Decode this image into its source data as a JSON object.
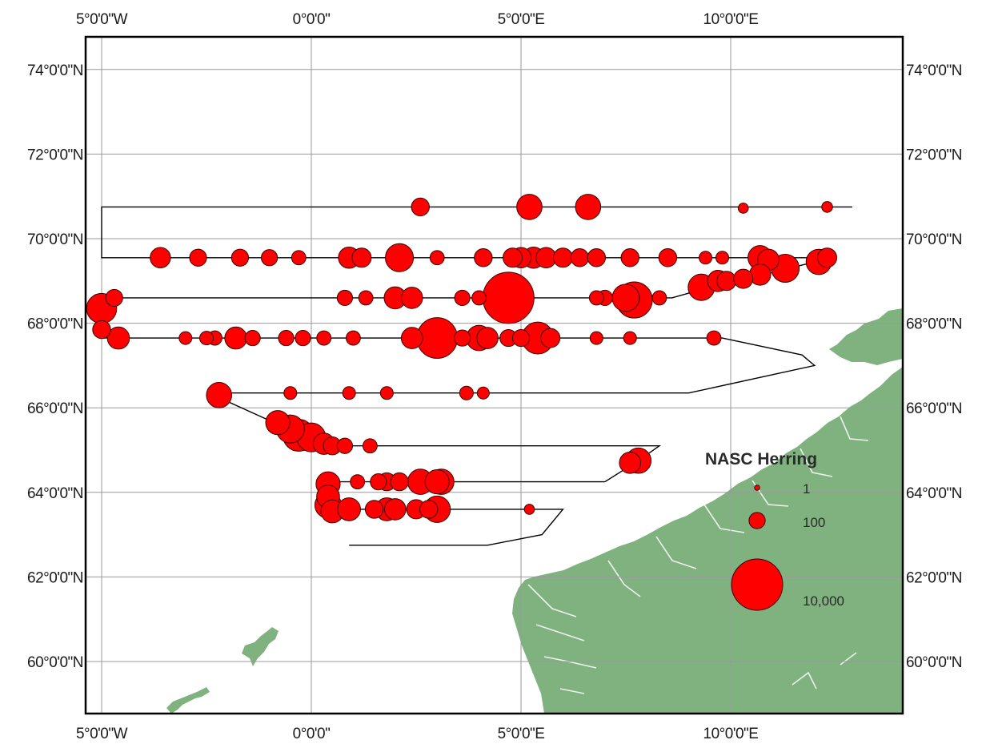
{
  "map": {
    "lon_range": [
      -5,
      14
    ],
    "lat_range": [
      58.8,
      75
    ],
    "land_color": "#7fb27e",
    "track_color": "#000000",
    "circle_fill": "#ff0000",
    "circle_stroke": "#3a0000",
    "grid_color": "#9a9a9a",
    "frame_color": "#000000"
  },
  "axes": {
    "top_labels": [
      {
        "lon": -5,
        "text": "5°0'0\"W"
      },
      {
        "lon": 0,
        "text": "0°0'0\""
      },
      {
        "lon": 5,
        "text": "5°0'0\"E"
      },
      {
        "lon": 10,
        "text": "10°0'0\"E"
      }
    ],
    "bottom_labels": [
      {
        "lon": -5,
        "text": "5°0'0\"W"
      },
      {
        "lon": 0,
        "text": "0°0'0\""
      },
      {
        "lon": 5,
        "text": "5°0'0\"E"
      },
      {
        "lon": 10,
        "text": "10°0'0\"E"
      }
    ],
    "lat_labels": [
      {
        "lat": 74,
        "text": "74°0'0\"N"
      },
      {
        "lat": 72,
        "text": "72°0'0\"N"
      },
      {
        "lat": 70,
        "text": "70°0'0\"N"
      },
      {
        "lat": 68,
        "text": "68°0'0\"N"
      },
      {
        "lat": 66,
        "text": "66°0'0\"N"
      },
      {
        "lat": 64,
        "text": "64°0'0\"N"
      },
      {
        "lat": 62,
        "text": "62°0'0\"N"
      },
      {
        "lat": 60,
        "text": "60°0'0\"N"
      }
    ]
  },
  "legend": {
    "title": "NASC Herring",
    "entries": [
      {
        "value": 1,
        "label": "1"
      },
      {
        "value": 100,
        "label": "100"
      },
      {
        "value": 10000,
        "label": "10,000"
      }
    ]
  },
  "cruise_track": [
    [
      12.9,
      70.75
    ],
    [
      -5.0,
      70.75
    ],
    [
      -5.0,
      69.55
    ],
    [
      12.4,
      69.55
    ],
    [
      11.8,
      69.4
    ],
    [
      10.6,
      69.1
    ],
    [
      9.5,
      68.85
    ],
    [
      8.6,
      68.6
    ],
    [
      -5.0,
      68.6
    ],
    [
      -5.0,
      67.65
    ],
    [
      9.8,
      67.65
    ],
    [
      11.7,
      67.25
    ],
    [
      12.0,
      67.0
    ],
    [
      9.0,
      66.35
    ],
    [
      -2.2,
      66.35
    ],
    [
      -2.0,
      66.15
    ],
    [
      -1.0,
      65.7
    ],
    [
      0.2,
      65.1
    ],
    [
      8.3,
      65.1
    ],
    [
      7.8,
      64.75
    ],
    [
      7.0,
      64.25
    ],
    [
      0.4,
      64.25
    ],
    [
      0.4,
      63.6
    ],
    [
      6.0,
      63.6
    ],
    [
      5.5,
      63.0
    ],
    [
      4.2,
      62.75
    ],
    [
      0.9,
      62.75
    ]
  ],
  "nasc_observations": [
    {
      "lon": 2.6,
      "lat": 70.75,
      "nasc": 150
    },
    {
      "lon": 5.2,
      "lat": 70.75,
      "nasc": 600
    },
    {
      "lon": 6.6,
      "lat": 70.75,
      "nasc": 600
    },
    {
      "lon": 10.3,
      "lat": 70.72,
      "nasc": 15
    },
    {
      "lon": 12.3,
      "lat": 70.75,
      "nasc": 20
    },
    {
      "lon": -3.6,
      "lat": 69.55,
      "nasc": 250
    },
    {
      "lon": -2.7,
      "lat": 69.55,
      "nasc": 120
    },
    {
      "lon": -1.7,
      "lat": 69.55,
      "nasc": 120
    },
    {
      "lon": -1.0,
      "lat": 69.55,
      "nasc": 100
    },
    {
      "lon": -0.3,
      "lat": 69.55,
      "nasc": 60
    },
    {
      "lon": 0.9,
      "lat": 69.55,
      "nasc": 300
    },
    {
      "lon": 1.2,
      "lat": 69.55,
      "nasc": 200
    },
    {
      "lon": 2.1,
      "lat": 69.55,
      "nasc": 900
    },
    {
      "lon": 3.0,
      "lat": 69.55,
      "nasc": 60
    },
    {
      "lon": 4.1,
      "lat": 69.55,
      "nasc": 150
    },
    {
      "lon": 4.8,
      "lat": 69.55,
      "nasc": 200
    },
    {
      "lon": 5.0,
      "lat": 69.55,
      "nasc": 250
    },
    {
      "lon": 5.3,
      "lat": 69.55,
      "nasc": 300
    },
    {
      "lon": 5.6,
      "lat": 69.55,
      "nasc": 250
    },
    {
      "lon": 6.0,
      "lat": 69.55,
      "nasc": 200
    },
    {
      "lon": 6.4,
      "lat": 69.55,
      "nasc": 150
    },
    {
      "lon": 6.8,
      "lat": 69.55,
      "nasc": 150
    },
    {
      "lon": 7.6,
      "lat": 69.55,
      "nasc": 150
    },
    {
      "lon": 8.5,
      "lat": 69.55,
      "nasc": 150
    },
    {
      "lon": 9.4,
      "lat": 69.55,
      "nasc": 40
    },
    {
      "lon": 9.8,
      "lat": 69.55,
      "nasc": 40
    },
    {
      "lon": 10.7,
      "lat": 69.55,
      "nasc": 500
    },
    {
      "lon": 10.9,
      "lat": 69.5,
      "nasc": 300
    },
    {
      "lon": 11.3,
      "lat": 69.3,
      "nasc": 900
    },
    {
      "lon": 12.1,
      "lat": 69.45,
      "nasc": 600
    },
    {
      "lon": 12.3,
      "lat": 69.55,
      "nasc": 200
    },
    {
      "lon": -5.0,
      "lat": 68.35,
      "nasc": 1200
    },
    {
      "lon": -4.7,
      "lat": 68.6,
      "nasc": 120
    },
    {
      "lon": 0.8,
      "lat": 68.6,
      "nasc": 80
    },
    {
      "lon": 1.3,
      "lat": 68.6,
      "nasc": 60
    },
    {
      "lon": 2.0,
      "lat": 68.6,
      "nasc": 350
    },
    {
      "lon": 2.4,
      "lat": 68.6,
      "nasc": 300
    },
    {
      "lon": 3.6,
      "lat": 68.6,
      "nasc": 80
    },
    {
      "lon": 4.0,
      "lat": 68.6,
      "nasc": 60
    },
    {
      "lon": 4.7,
      "lat": 68.6,
      "nasc": 10000
    },
    {
      "lon": 6.8,
      "lat": 68.6,
      "nasc": 60
    },
    {
      "lon": 7.0,
      "lat": 68.6,
      "nasc": 80
    },
    {
      "lon": 7.5,
      "lat": 68.6,
      "nasc": 800
    },
    {
      "lon": 7.7,
      "lat": 68.55,
      "nasc": 2500
    },
    {
      "lon": 8.3,
      "lat": 68.6,
      "nasc": 60
    },
    {
      "lon": 9.3,
      "lat": 68.85,
      "nasc": 700
    },
    {
      "lon": 9.7,
      "lat": 69.0,
      "nasc": 300
    },
    {
      "lon": 9.9,
      "lat": 69.0,
      "nasc": 200
    },
    {
      "lon": 10.3,
      "lat": 69.05,
      "nasc": 200
    },
    {
      "lon": 10.7,
      "lat": 69.15,
      "nasc": 300
    },
    {
      "lon": -5.0,
      "lat": 67.85,
      "nasc": 150
    },
    {
      "lon": -4.6,
      "lat": 67.65,
      "nasc": 350
    },
    {
      "lon": -3.0,
      "lat": 67.65,
      "nasc": 40
    },
    {
      "lon": -2.5,
      "lat": 67.65,
      "nasc": 50
    },
    {
      "lon": -2.3,
      "lat": 67.65,
      "nasc": 60
    },
    {
      "lon": -1.8,
      "lat": 67.65,
      "nasc": 350
    },
    {
      "lon": -1.4,
      "lat": 67.65,
      "nasc": 80
    },
    {
      "lon": -0.6,
      "lat": 67.65,
      "nasc": 80
    },
    {
      "lon": -0.2,
      "lat": 67.65,
      "nasc": 80
    },
    {
      "lon": 0.3,
      "lat": 67.65,
      "nasc": 60
    },
    {
      "lon": 1.0,
      "lat": 67.65,
      "nasc": 60
    },
    {
      "lon": 2.4,
      "lat": 67.65,
      "nasc": 300
    },
    {
      "lon": 3.0,
      "lat": 67.65,
      "nasc": 4000
    },
    {
      "lon": 3.6,
      "lat": 67.65,
      "nasc": 100
    },
    {
      "lon": 4.0,
      "lat": 67.65,
      "nasc": 600
    },
    {
      "lon": 4.2,
      "lat": 67.65,
      "nasc": 300
    },
    {
      "lon": 4.7,
      "lat": 67.65,
      "nasc": 120
    },
    {
      "lon": 5.0,
      "lat": 67.65,
      "nasc": 120
    },
    {
      "lon": 5.4,
      "lat": 67.65,
      "nasc": 1500
    },
    {
      "lon": 5.7,
      "lat": 67.65,
      "nasc": 200
    },
    {
      "lon": 6.8,
      "lat": 67.65,
      "nasc": 40
    },
    {
      "lon": 7.6,
      "lat": 67.65,
      "nasc": 40
    },
    {
      "lon": 9.6,
      "lat": 67.65,
      "nasc": 60
    },
    {
      "lon": -2.2,
      "lat": 66.3,
      "nasc": 600
    },
    {
      "lon": -0.5,
      "lat": 66.35,
      "nasc": 40
    },
    {
      "lon": 0.9,
      "lat": 66.35,
      "nasc": 40
    },
    {
      "lon": 1.8,
      "lat": 66.35,
      "nasc": 40
    },
    {
      "lon": 3.7,
      "lat": 66.35,
      "nasc": 50
    },
    {
      "lon": 4.1,
      "lat": 66.35,
      "nasc": 30
    },
    {
      "lon": -0.8,
      "lat": 65.65,
      "nasc": 500
    },
    {
      "lon": -0.5,
      "lat": 65.5,
      "nasc": 900
    },
    {
      "lon": -0.3,
      "lat": 65.35,
      "nasc": 1500
    },
    {
      "lon": 0.0,
      "lat": 65.3,
      "nasc": 1000
    },
    {
      "lon": 0.3,
      "lat": 65.15,
      "nasc": 300
    },
    {
      "lon": 0.5,
      "lat": 65.1,
      "nasc": 150
    },
    {
      "lon": 0.8,
      "lat": 65.1,
      "nasc": 80
    },
    {
      "lon": 1.4,
      "lat": 65.1,
      "nasc": 60
    },
    {
      "lon": 7.8,
      "lat": 64.75,
      "nasc": 600
    },
    {
      "lon": 7.6,
      "lat": 64.7,
      "nasc": 300
    },
    {
      "lon": 0.4,
      "lat": 64.2,
      "nasc": 500
    },
    {
      "lon": 1.1,
      "lat": 64.25,
      "nasc": 60
    },
    {
      "lon": 1.6,
      "lat": 64.25,
      "nasc": 100
    },
    {
      "lon": 1.8,
      "lat": 64.25,
      "nasc": 150
    },
    {
      "lon": 2.1,
      "lat": 64.25,
      "nasc": 150
    },
    {
      "lon": 2.6,
      "lat": 64.25,
      "nasc": 600
    },
    {
      "lon": 3.0,
      "lat": 64.25,
      "nasc": 500
    },
    {
      "lon": 3.1,
      "lat": 64.25,
      "nasc": 600
    },
    {
      "lon": 0.4,
      "lat": 63.9,
      "nasc": 400
    },
    {
      "lon": 0.4,
      "lat": 63.7,
      "nasc": 700
    },
    {
      "lon": 0.5,
      "lat": 63.55,
      "nasc": 400
    },
    {
      "lon": 0.9,
      "lat": 63.6,
      "nasc": 400
    },
    {
      "lon": 1.5,
      "lat": 63.6,
      "nasc": 150
    },
    {
      "lon": 1.8,
      "lat": 63.6,
      "nasc": 400
    },
    {
      "lon": 2.0,
      "lat": 63.6,
      "nasc": 300
    },
    {
      "lon": 2.5,
      "lat": 63.6,
      "nasc": 200
    },
    {
      "lon": 2.8,
      "lat": 63.6,
      "nasc": 150
    },
    {
      "lon": 3.0,
      "lat": 63.6,
      "nasc": 700
    },
    {
      "lon": 5.2,
      "lat": 63.6,
      "nasc": 15
    }
  ]
}
